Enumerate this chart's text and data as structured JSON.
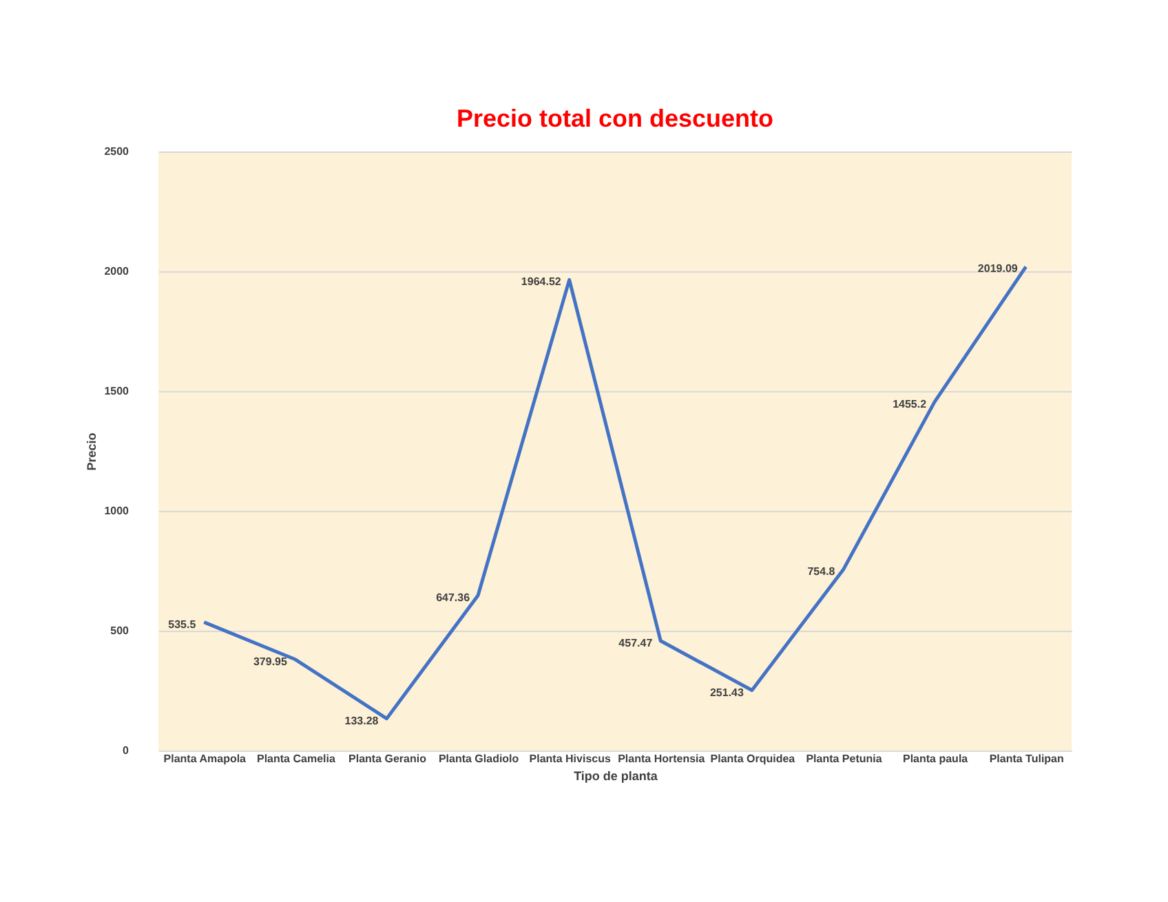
{
  "chart_data": {
    "type": "line",
    "title": "Precio total con descuento",
    "xlabel": "Tipo de planta",
    "ylabel": "Precio",
    "categories": [
      "Planta Amapola",
      "Planta Camelia",
      "Planta Geranio",
      "Planta Gladiolo",
      "Planta Hiviscus",
      "Planta Hortensia",
      "Planta Orquidea",
      "Planta Petunia",
      "Planta paula",
      "Planta Tulipan"
    ],
    "series": [
      {
        "color": "#4472c4",
        "values": [
          535.5,
          379.95,
          133.28,
          647.36,
          1964.52,
          457.47,
          251.43,
          754.8,
          1455.2,
          2019.09
        ]
      }
    ],
    "ylim": [
      0,
      2500
    ],
    "yticks": [
      0,
      500,
      1000,
      1500,
      2000,
      2500
    ],
    "grid": "y",
    "data_labels": true,
    "marker": "none",
    "line_style": "solid"
  }
}
